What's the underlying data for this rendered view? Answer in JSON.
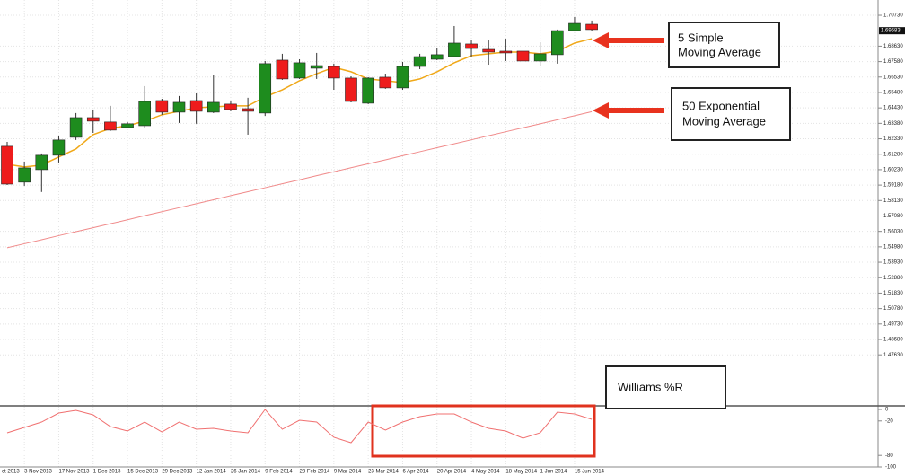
{
  "chart_data": {
    "type": "candlestick",
    "categories": [
      null,
      "3 Nov 2013",
      null,
      "17 Nov 2013",
      null,
      "1 Dec 2013",
      null,
      "15 Dec 2013",
      null,
      "29 Dec 2013",
      null,
      "12 Jan 2014",
      null,
      "26 Jan 2014",
      null,
      "9 Feb 2014",
      null,
      "23 Feb 2014",
      null,
      "9 Mar 2014",
      null,
      "23 Mar 2014",
      null,
      "6 Apr 2014",
      null,
      "20 Apr 2014",
      null,
      "4 May 2014",
      null,
      "18 May 2014",
      null,
      "1 Jun 2014",
      null,
      "15 Jun 2014",
      null
    ],
    "x_edge_label": "ct 2013",
    "open": [
      1.6182,
      1.5938,
      1.6023,
      1.6121,
      1.6243,
      1.6377,
      1.6347,
      1.631,
      1.6322,
      1.6493,
      1.6414,
      1.6493,
      1.6414,
      1.6469,
      1.6438,
      1.6408,
      1.6768,
      1.6646,
      1.6713,
      1.6725,
      1.6646,
      1.6475,
      1.6652,
      1.6579,
      1.6725,
      1.6774,
      1.6792,
      1.6878,
      1.6841,
      1.6829,
      1.6829,
      1.6762,
      1.6805,
      1.6969,
      1.7012
    ],
    "high": [
      1.6212,
      1.6078,
      1.6133,
      1.6249,
      1.6408,
      1.6432,
      1.6457,
      1.6347,
      1.6591,
      1.6505,
      1.6524,
      1.6542,
      1.6664,
      1.6487,
      1.6512,
      1.6762,
      1.6811,
      1.6774,
      1.6817,
      1.6744,
      1.6658,
      1.6652,
      1.6676,
      1.6756,
      1.6811,
      1.6847,
      1.7,
      1.6902,
      1.6902,
      1.6914,
      1.6884,
      1.689,
      1.6976,
      1.7061,
      1.7037
    ],
    "low": [
      1.5919,
      1.5913,
      1.5871,
      1.6072,
      1.6225,
      1.6273,
      1.6286,
      1.6304,
      1.631,
      1.6396,
      1.6341,
      1.6335,
      1.6408,
      1.642,
      1.6261,
      1.6389,
      1.6634,
      1.664,
      1.664,
      1.6566,
      1.6481,
      1.6469,
      1.6573,
      1.6566,
      1.6707,
      1.6768,
      1.6786,
      1.6792,
      1.6737,
      1.6762,
      1.6701,
      1.6731,
      1.6744,
      1.6963,
      1.6969
    ],
    "close": [
      1.5925,
      1.6035,
      1.6121,
      1.6225,
      1.6377,
      1.6353,
      1.6292,
      1.6335,
      1.6487,
      1.6414,
      1.6481,
      1.642,
      1.6481,
      1.6432,
      1.642,
      1.6744,
      1.664,
      1.675,
      1.6731,
      1.6646,
      1.6487,
      1.6646,
      1.6579,
      1.6725,
      1.6792,
      1.6805,
      1.6884,
      1.6847,
      1.6823,
      1.6817,
      1.6762,
      1.6811,
      1.6969,
      1.7018,
      1.6976
    ],
    "up_color": "#1e8c1e",
    "down_color": "#ee1c1c",
    "lines": [
      {
        "color": "#f0a818",
        "values": [
          1.606,
          1.6042,
          1.6054,
          1.6109,
          1.6164,
          1.6261,
          1.6304,
          1.6322,
          1.6353,
          1.6396,
          1.642,
          1.6444,
          1.645,
          1.6457,
          1.6457,
          1.6518,
          1.6566,
          1.6628,
          1.6676,
          1.6719,
          1.6689,
          1.664,
          1.6628,
          1.6615,
          1.664,
          1.6689,
          1.675,
          1.6798,
          1.6811,
          1.6823,
          1.6823,
          1.6811,
          1.6829,
          1.6884,
          1.6914
        ]
      },
      {
        "color": "#f08a8a",
        "values": [
          1.5492,
          1.5519,
          1.5546,
          1.5574,
          1.5601,
          1.5628,
          1.5655,
          1.5682,
          1.571,
          1.5737,
          1.5764,
          1.5791,
          1.5818,
          1.5846,
          1.5873,
          1.59,
          1.5927,
          1.5954,
          1.5982,
          1.6009,
          1.6036,
          1.6063,
          1.609,
          1.6118,
          1.6145,
          1.6172,
          1.6199,
          1.6226,
          1.6254,
          1.6281,
          1.6308,
          1.6335,
          1.6362,
          1.639,
          1.6417
        ]
      }
    ],
    "ylim": [
      1.4416,
      1.7177
    ],
    "yticks": [
      {
        "value": 1.7073,
        "label": "1.70730"
      },
      {
        "value": 1.6863,
        "label": "1.68630"
      },
      {
        "value": 1.6758,
        "label": "1.67580"
      },
      {
        "value": 1.6653,
        "label": "1.66530"
      },
      {
        "value": 1.6548,
        "label": "1.65480"
      },
      {
        "value": 1.6443,
        "label": "1.64430"
      },
      {
        "value": 1.6338,
        "label": "1.63380"
      },
      {
        "value": 1.6233,
        "label": "1.62330"
      },
      {
        "value": 1.6128,
        "label": "1.61280"
      },
      {
        "value": 1.6023,
        "label": "1.60230"
      },
      {
        "value": 1.5918,
        "label": "1.59180"
      },
      {
        "value": 1.5813,
        "label": "1.58130"
      },
      {
        "value": 1.5708,
        "label": "1.57080"
      },
      {
        "value": 1.5603,
        "label": "1.56030"
      },
      {
        "value": 1.5498,
        "label": "1.54980"
      },
      {
        "value": 1.5393,
        "label": "1.53930"
      },
      {
        "value": 1.5288,
        "label": "1.52880"
      },
      {
        "value": 1.5183,
        "label": "1.51830"
      },
      {
        "value": 1.5078,
        "label": "1.50780"
      },
      {
        "value": 1.4973,
        "label": "1.49730"
      },
      {
        "value": 1.4868,
        "label": "1.48680"
      },
      {
        "value": 1.4763,
        "label": "1.47630"
      }
    ],
    "price_marker": {
      "value": 1.69683,
      "label": "1.69683"
    },
    "grid": true,
    "indicator": {
      "color": "#f07070",
      "ylim": [
        -100,
        0
      ],
      "yticks": [
        0,
        -20,
        -80,
        -100
      ],
      "values": [
        -40.6,
        -31.3,
        -21.9,
        -6.3,
        -1.6,
        -9.4,
        -29.7,
        -37.5,
        -21.9,
        -39.1,
        -21.9,
        -34.4,
        -32.8,
        -37.5,
        -40.6,
        0,
        -34.4,
        -18.8,
        -21.9,
        -48.4,
        -57.8,
        -21.9,
        -35.9,
        -21.9,
        -12.5,
        -7.8,
        -7.8,
        -21.9,
        -32.8,
        -37.5,
        -50.0,
        -40.6,
        -4.7,
        -7.8,
        -17.2
      ]
    },
    "annotations": [
      {
        "lines": [
          "5 Simple",
          "Moving Average"
        ]
      },
      {
        "lines": [
          "50 Exponential",
          "Moving Average"
        ]
      },
      {
        "lines": [
          "Williams %R"
        ]
      }
    ]
  }
}
